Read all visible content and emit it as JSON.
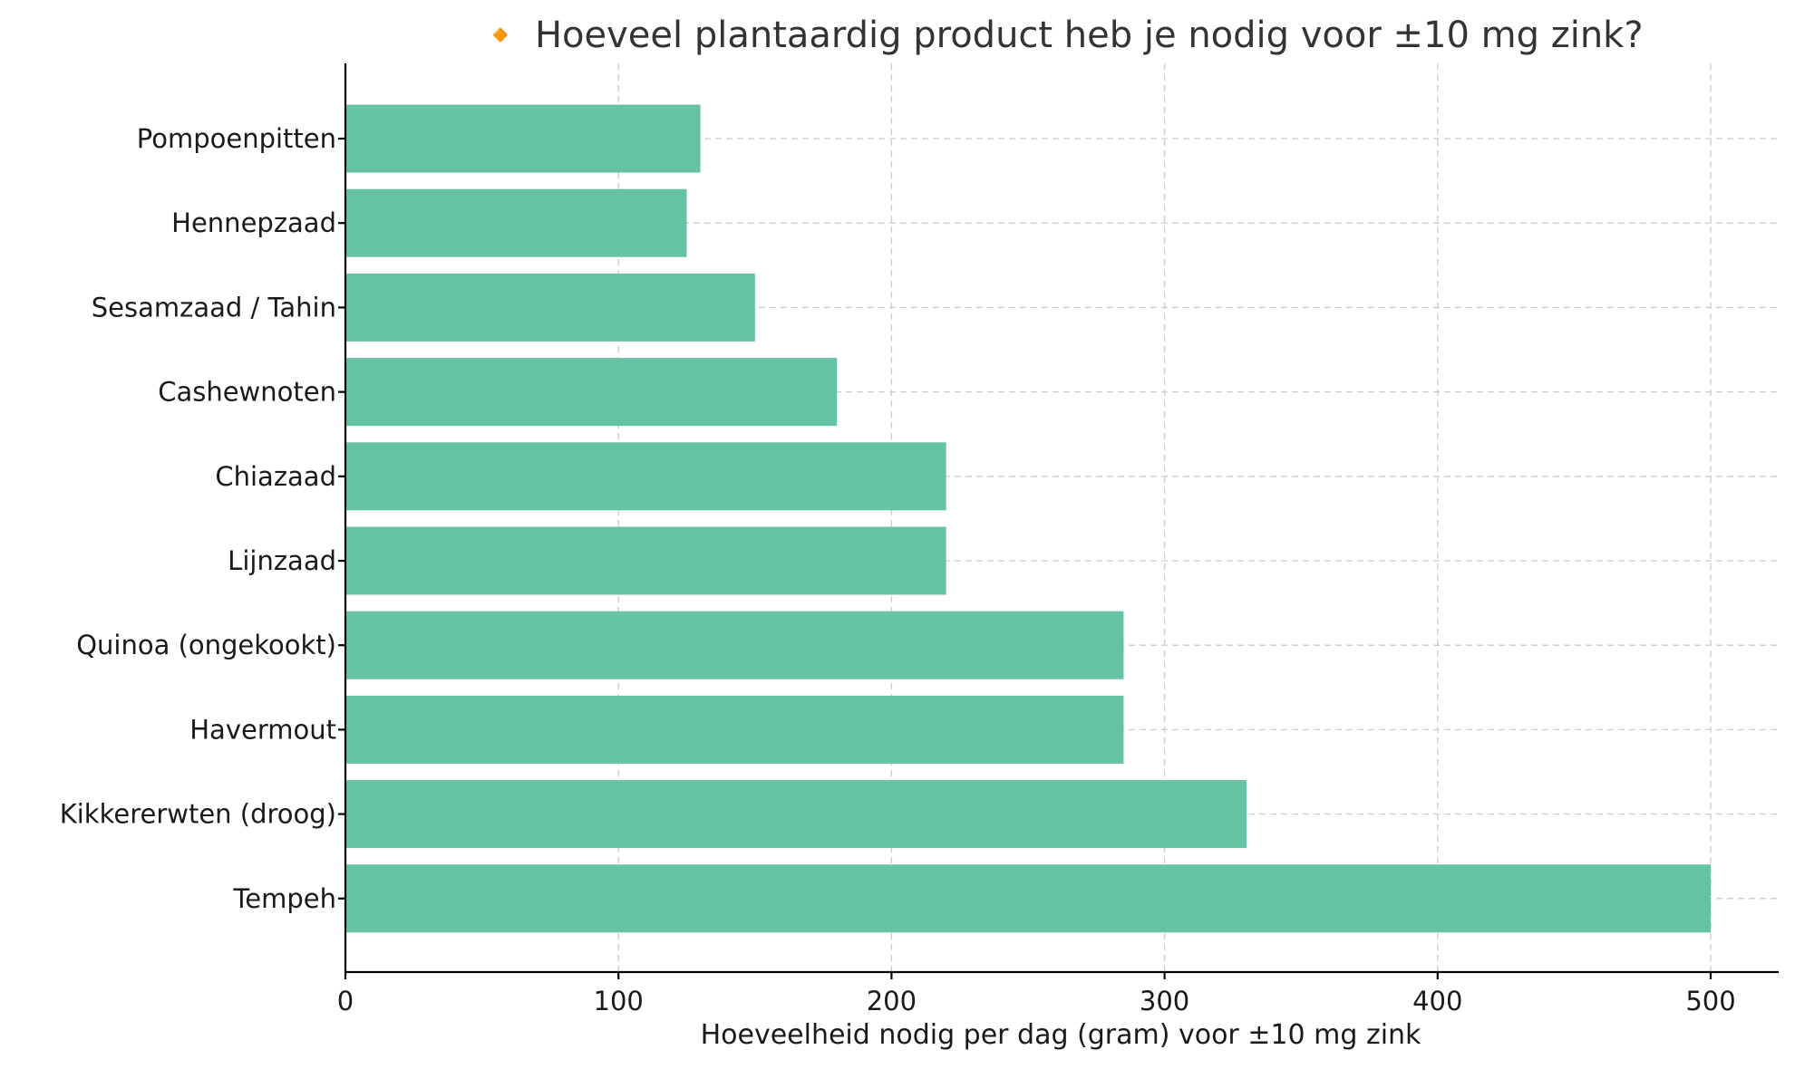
{
  "chart_data": {
    "type": "bar",
    "orientation": "horizontal",
    "title": "🔸 Hoeveel plantaardig product heb je nodig voor ±10 mg zink?",
    "xlabel": "Hoeveelheid nodig per dag (gram) voor ±10 mg zink",
    "ylabel": "",
    "categories": [
      "Pompoenpitten",
      "Hennepzaad",
      "Sesamzaad / Tahin",
      "Cashewnoten",
      "Chiazaad",
      "Lijnzaad",
      "Quinoa (ongekookt)",
      "Havermout",
      "Kikkererwten (droog)",
      "Tempeh"
    ],
    "values": [
      130,
      125,
      150,
      180,
      220,
      220,
      285,
      285,
      330,
      500
    ],
    "xlim": [
      0,
      525
    ],
    "xticks": [
      0,
      100,
      200,
      300,
      400,
      500
    ],
    "grid": true,
    "bar_color": "#66c2a5"
  }
}
